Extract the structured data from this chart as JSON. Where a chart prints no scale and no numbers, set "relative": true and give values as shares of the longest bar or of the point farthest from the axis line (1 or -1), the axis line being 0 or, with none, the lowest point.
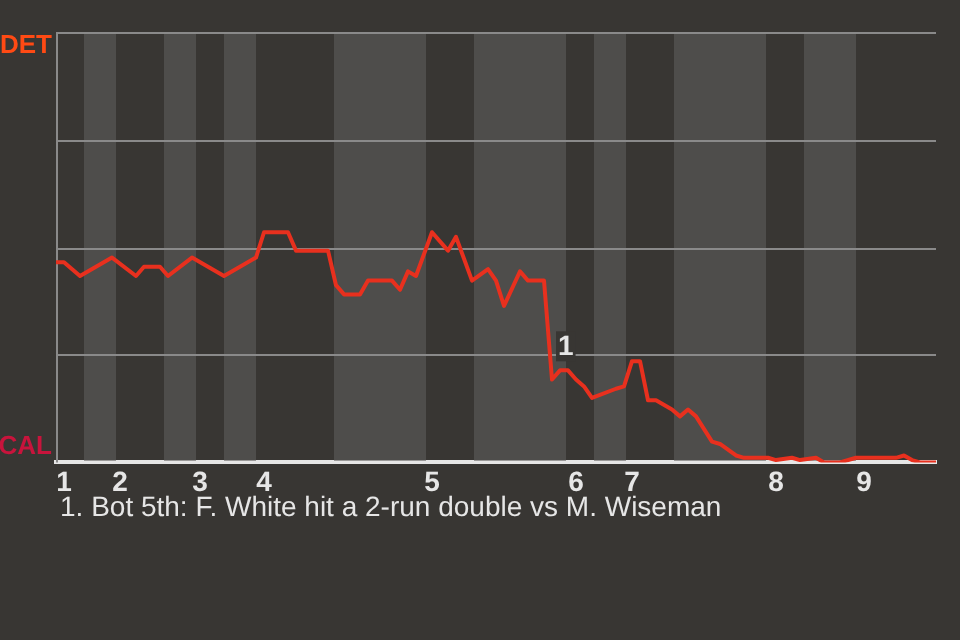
{
  "chart_data": {
    "type": "line",
    "relative": true,
    "categories": [
      null,
      "1",
      null,
      null,
      null,
      null,
      null,
      null,
      "2",
      null,
      null,
      null,
      null,
      null,
      null,
      null,
      null,
      null,
      "3",
      null,
      null,
      null,
      null,
      null,
      null,
      null,
      "4",
      null,
      null,
      null,
      null,
      null,
      null,
      null,
      null,
      null,
      null,
      null,
      null,
      null,
      null,
      null,
      null,
      null,
      null,
      null,
      null,
      "5",
      null,
      null,
      null,
      null,
      null,
      null,
      null,
      null,
      null,
      null,
      null,
      null,
      null,
      null,
      null,
      null,
      null,
      "6",
      null,
      null,
      null,
      null,
      null,
      null,
      "7",
      null,
      null,
      null,
      null,
      null,
      null,
      null,
      null,
      null,
      null,
      null,
      null,
      null,
      null,
      null,
      null,
      null,
      "8",
      null,
      null,
      null,
      null,
      null,
      null,
      null,
      null,
      null,
      null,
      "9",
      null,
      null,
      null,
      null,
      null,
      null,
      null,
      null,
      null
    ],
    "series": [
      {
        "color": "#e8301e",
        "values": [
          0.87,
          0.87,
          null,
          0.81,
          null,
          null,
          null,
          0.89,
          null,
          null,
          0.81,
          0.85,
          null,
          0.85,
          0.81,
          null,
          null,
          0.89,
          null,
          null,
          null,
          0.81,
          null,
          null,
          null,
          0.89,
          1,
          null,
          null,
          1,
          0.92,
          null,
          null,
          null,
          0.92,
          0.77,
          0.73,
          null,
          0.73,
          0.79,
          null,
          null,
          0.79,
          0.75,
          0.83,
          0.81,
          null,
          1,
          null,
          0.92,
          0.98,
          null,
          0.79,
          null,
          0.84,
          0.79,
          0.68,
          null,
          0.83,
          0.79,
          null,
          0.79,
          0.36,
          0.4,
          0.4,
          0.36,
          0.33,
          0.28,
          null,
          null,
          0.32,
          0.33,
          0.44,
          0.44,
          0.27,
          0.27,
          null,
          0.23,
          0.2,
          0.23,
          0.2,
          null,
          0.09,
          0.08,
          null,
          0.03,
          0.02,
          null,
          null,
          0.02,
          0.01,
          null,
          0.02,
          0.01,
          null,
          0.02,
          0,
          null,
          0,
          null,
          0.02,
          0.02,
          null,
          null,
          null,
          0.02,
          0.03,
          0.01,
          0,
          null,
          0
        ],
        "name": null
      }
    ],
    "annotations": [
      "DET",
      "CAL",
      "1. Bot 5th: F. White hit a 2-run double vs M. Wiseman",
      {
        "text": "1",
        "y": 0.5
      }
    ],
    "ref_lines": [
      {
        "axis": "y",
        "value": 0.47,
        "color": "#8a8a8a"
      },
      {
        "axis": "y",
        "value": 0.93,
        "color": "#8a8a8a"
      },
      {
        "axis": "y",
        "value": 1.4,
        "color": "#8a8a8a"
      },
      {
        "axis": "y",
        "value": 1.87,
        "color": "#8a8a8a"
      }
    ],
    "legend": false,
    "marker": "none",
    "line_style": "solid"
  }
}
